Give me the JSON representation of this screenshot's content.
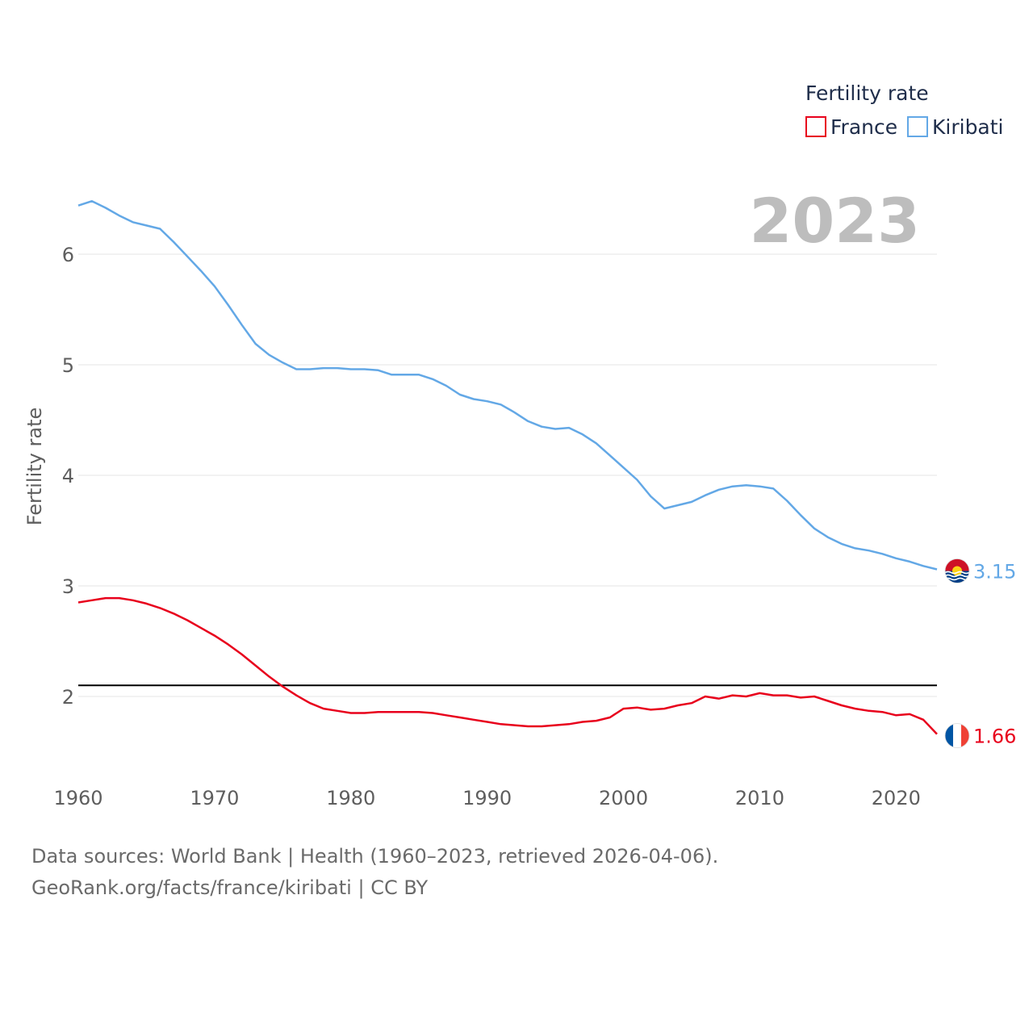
{
  "chart_data": {
    "type": "line",
    "legend_title": "Fertility rate",
    "ylabel": "Fertility rate",
    "xlabel": "",
    "year_label": "2023",
    "xlim": [
      1960,
      2023
    ],
    "ylim": [
      1.5,
      6.6
    ],
    "x_ticks": [
      1960,
      1970,
      1980,
      1990,
      2000,
      2010,
      2020
    ],
    "y_ticks": [
      2,
      3,
      4,
      5,
      6
    ],
    "reference_line": {
      "value": 2.1,
      "color": "#000000"
    },
    "legend_position": "top-right",
    "series": [
      {
        "name": "France",
        "color": "#e8001c",
        "end_label": "1.66",
        "flag_icon": "france-flag-icon",
        "x": [
          1960,
          1961,
          1962,
          1963,
          1964,
          1965,
          1966,
          1967,
          1968,
          1969,
          1970,
          1971,
          1972,
          1973,
          1974,
          1975,
          1976,
          1977,
          1978,
          1979,
          1980,
          1981,
          1982,
          1983,
          1984,
          1985,
          1986,
          1987,
          1988,
          1989,
          1990,
          1991,
          1992,
          1993,
          1994,
          1995,
          1996,
          1997,
          1998,
          1999,
          2000,
          2001,
          2002,
          2003,
          2004,
          2005,
          2006,
          2007,
          2008,
          2009,
          2010,
          2011,
          2012,
          2013,
          2014,
          2015,
          2016,
          2017,
          2018,
          2019,
          2020,
          2021,
          2022,
          2023
        ],
        "values": [
          2.85,
          2.87,
          2.89,
          2.89,
          2.87,
          2.84,
          2.8,
          2.75,
          2.69,
          2.62,
          2.55,
          2.47,
          2.38,
          2.28,
          2.18,
          2.09,
          2.01,
          1.94,
          1.89,
          1.87,
          1.85,
          1.85,
          1.86,
          1.86,
          1.86,
          1.86,
          1.85,
          1.83,
          1.81,
          1.79,
          1.77,
          1.75,
          1.74,
          1.73,
          1.73,
          1.74,
          1.75,
          1.77,
          1.78,
          1.81,
          1.89,
          1.9,
          1.88,
          1.89,
          1.92,
          1.94,
          2.0,
          1.98,
          2.01,
          2.0,
          2.03,
          2.01,
          2.01,
          1.99,
          2.0,
          1.96,
          1.92,
          1.89,
          1.87,
          1.86,
          1.83,
          1.84,
          1.79,
          1.66
        ]
      },
      {
        "name": "Kiribati",
        "color": "#63a8e6",
        "end_label": "3.15",
        "flag_icon": "kiribati-flag-icon",
        "x": [
          1960,
          1961,
          1962,
          1963,
          1964,
          1965,
          1966,
          1967,
          1968,
          1969,
          1970,
          1971,
          1972,
          1973,
          1974,
          1975,
          1976,
          1977,
          1978,
          1979,
          1980,
          1981,
          1982,
          1983,
          1984,
          1985,
          1986,
          1987,
          1988,
          1989,
          1990,
          1991,
          1992,
          1993,
          1994,
          1995,
          1996,
          1997,
          1998,
          1999,
          2000,
          2001,
          2002,
          2003,
          2004,
          2005,
          2006,
          2007,
          2008,
          2009,
          2010,
          2011,
          2012,
          2013,
          2014,
          2015,
          2016,
          2017,
          2018,
          2019,
          2020,
          2021,
          2022,
          2023
        ],
        "values": [
          6.44,
          6.48,
          6.42,
          6.35,
          6.29,
          6.26,
          6.23,
          6.11,
          5.98,
          5.85,
          5.71,
          5.54,
          5.36,
          5.19,
          5.09,
          5.02,
          4.96,
          4.96,
          4.97,
          4.97,
          4.96,
          4.96,
          4.95,
          4.91,
          4.91,
          4.91,
          4.87,
          4.81,
          4.73,
          4.69,
          4.67,
          4.64,
          4.57,
          4.49,
          4.44,
          4.42,
          4.43,
          4.37,
          4.29,
          4.18,
          4.07,
          3.96,
          3.81,
          3.7,
          3.73,
          3.76,
          3.82,
          3.87,
          3.9,
          3.91,
          3.9,
          3.88,
          3.77,
          3.64,
          3.52,
          3.44,
          3.38,
          3.34,
          3.32,
          3.29,
          3.25,
          3.22,
          3.18,
          3.15
        ]
      }
    ]
  },
  "source": {
    "line1": "Data sources: World Bank | Health (1960–2023, retrieved 2026-04-06).",
    "line2": "GeoRank.org/facts/france/kiribati | CC BY"
  }
}
